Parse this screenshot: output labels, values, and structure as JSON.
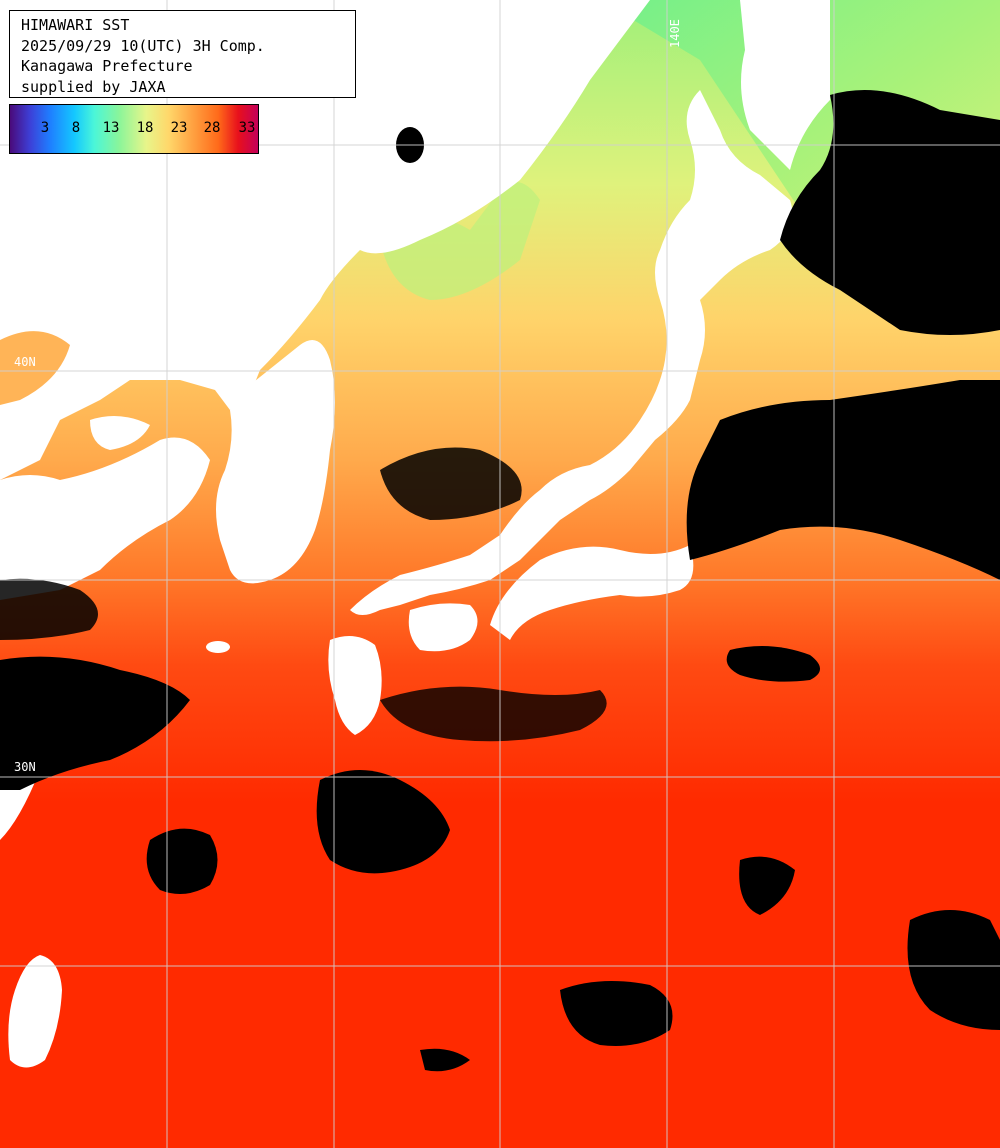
{
  "header": {
    "title": "HIMAWARI SST",
    "datetime": "2025/09/29 10(UTC) 3H Comp.",
    "region": "Kanagawa Prefecture",
    "credit": "supplied by JAXA"
  },
  "legend": {
    "ticks": [
      "3",
      "8",
      "13",
      "18",
      "23",
      "28",
      "33"
    ]
  },
  "grid_labels": {
    "lat_upper": "40N",
    "lat_lower": "30N",
    "lon": "140E"
  },
  "colors": {
    "land": "#ffffff",
    "cloud": "#000000",
    "warm_sea": "#ff2a00",
    "mid_sea": "#ffb457",
    "cool_sea": "#a8f27c",
    "grid": "#c8c8c8"
  }
}
